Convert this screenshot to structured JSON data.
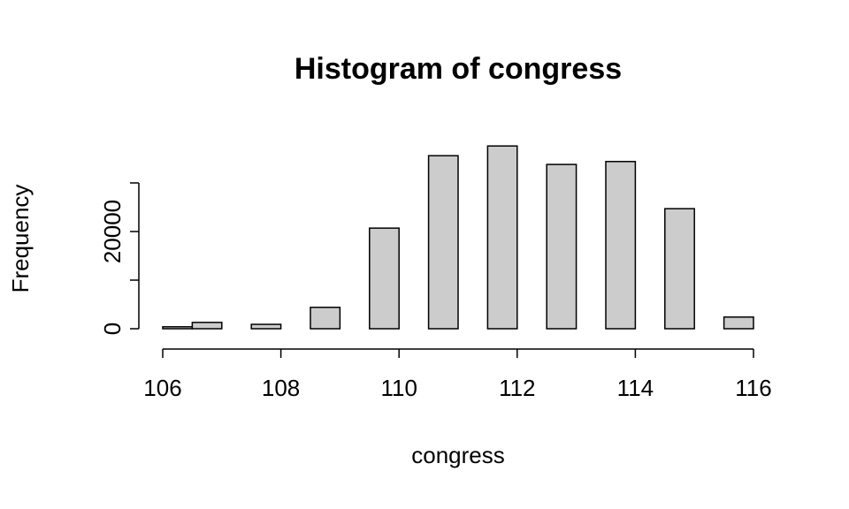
{
  "chart_data": {
    "type": "histogram",
    "title": "Histogram of congress",
    "x_label": "congress",
    "y_label": "Frequency",
    "bins": [
      106,
      106.5,
      107,
      107.5,
      108,
      108.5,
      109,
      109.5,
      110,
      110.5,
      111,
      111.5,
      112,
      112.5,
      113,
      113.5,
      114,
      114.5,
      115,
      115.5,
      116
    ],
    "values": [
      400,
      1300,
      0,
      900,
      0,
      4400,
      0,
      20700,
      0,
      35600,
      0,
      37600,
      0,
      33800,
      0,
      34400,
      0,
      24700,
      0,
      2400
    ],
    "color": "#cccccc",
    "xlim": [
      106,
      116
    ],
    "xticks": [
      106,
      108,
      110,
      112,
      114,
      116
    ],
    "ylim": [
      0,
      40000
    ],
    "yticks": [
      0,
      {
        "value": 10000
      },
      20000,
      {
        "value": 30000
      }
    ]
  }
}
